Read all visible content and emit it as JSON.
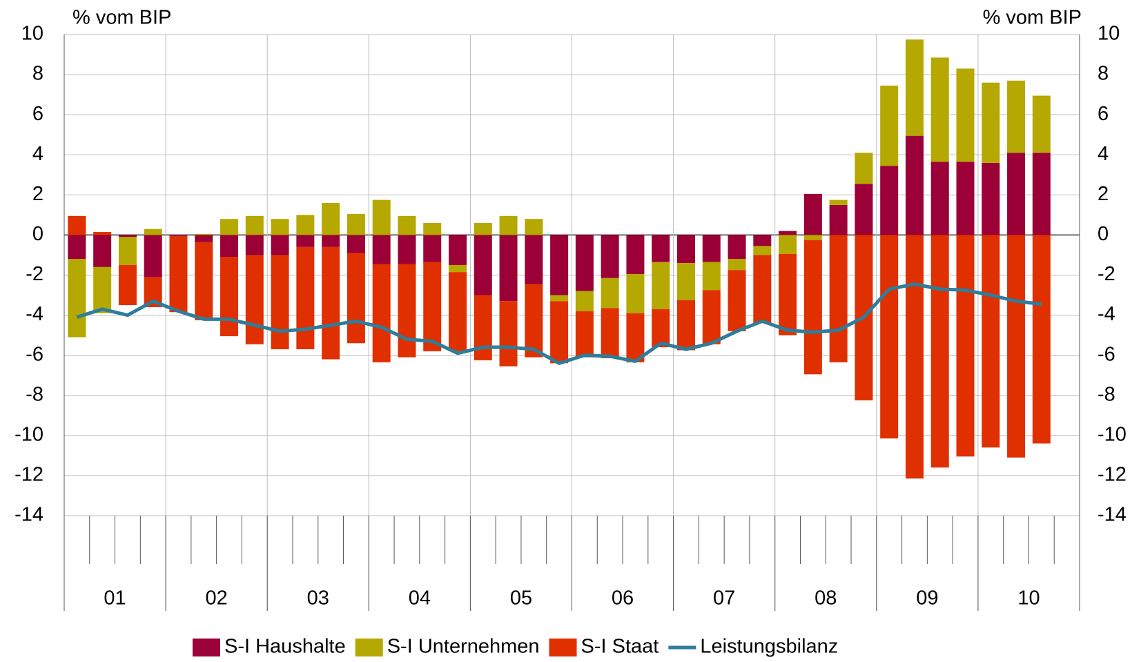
{
  "chart_data": {
    "type": "bar",
    "stacked": true,
    "y_label": "% vom BIP",
    "y2_label": "% vom BIP",
    "categories": [
      "01",
      null,
      null,
      null,
      "02",
      null,
      null,
      null,
      "03",
      null,
      null,
      null,
      "04",
      null,
      null,
      null,
      "05",
      null,
      null,
      null,
      "06",
      null,
      null,
      null,
      "07",
      null,
      null,
      null,
      "08",
      null,
      null,
      null,
      "09",
      null,
      null,
      null,
      "10",
      null,
      null,
      null
    ],
    "ylim": [
      -14,
      10
    ],
    "yticks": [
      -14,
      -12,
      -10,
      -8,
      -6,
      -4,
      -2,
      0,
      2,
      4,
      6,
      8,
      10
    ],
    "y2lim": [
      -14,
      10
    ],
    "y2ticks": [
      -14,
      -12,
      -10,
      -8,
      -6,
      -4,
      -2,
      0,
      2,
      4,
      6,
      8,
      10
    ],
    "grid": true,
    "legend": "bottom",
    "series": [
      {
        "name": "S-I Haushalte",
        "type": "bar",
        "color": "#9b0036",
        "values": [
          -1.2,
          -1.6,
          -0.1,
          -2.1,
          -0.05,
          -0.35,
          -1.1,
          -1.0,
          -1.0,
          -0.6,
          -0.6,
          -0.9,
          -1.45,
          -1.45,
          -1.35,
          -1.5,
          -3.0,
          -3.3,
          -2.45,
          -3.0,
          -2.8,
          -2.15,
          -1.95,
          -1.35,
          -1.4,
          -1.35,
          -1.2,
          -0.55,
          0.2,
          2.05,
          1.5,
          2.55,
          3.45,
          4.95,
          3.65,
          3.65,
          3.6,
          4.1,
          4.1,
          null
        ]
      },
      {
        "name": "S-I Unternehmen",
        "type": "bar",
        "color": "#b5a800",
        "values": [
          -3.9,
          -2.3,
          -1.4,
          0.3,
          0,
          0.05,
          0.8,
          0.95,
          0.8,
          1.0,
          1.6,
          1.05,
          1.75,
          0.95,
          0.6,
          -0.35,
          0.6,
          0.95,
          0.8,
          -0.3,
          -1.0,
          -1.5,
          -1.95,
          -2.35,
          -1.85,
          -1.4,
          -0.55,
          -0.45,
          -0.95,
          -0.25,
          0.25,
          1.55,
          4.0,
          4.8,
          5.2,
          4.65,
          4.0,
          3.6,
          2.85,
          null
        ]
      },
      {
        "name": "S-I Staat",
        "type": "bar",
        "color": "#e03000",
        "values": [
          0.95,
          0.15,
          -2.0,
          -1.5,
          -3.8,
          -3.9,
          -3.95,
          -4.45,
          -4.7,
          -5.1,
          -5.6,
          -4.5,
          -4.9,
          -4.65,
          -4.45,
          -3.95,
          -3.25,
          -3.25,
          -3.65,
          -3.1,
          -2.3,
          -2.5,
          -2.45,
          -1.9,
          -2.5,
          -2.7,
          -3.05,
          -3.4,
          -4.05,
          -6.7,
          -6.35,
          -8.25,
          -10.15,
          -12.15,
          -11.6,
          -11.05,
          -10.6,
          -11.1,
          -10.4,
          null
        ]
      },
      {
        "name": "Leistungsbilanz",
        "type": "line",
        "color": "#2e7d9a",
        "values": [
          -4.1,
          -3.7,
          -4.0,
          -3.3,
          -3.8,
          -4.2,
          -4.2,
          -4.5,
          -4.8,
          -4.7,
          -4.5,
          -4.3,
          -4.6,
          -5.2,
          -5.3,
          -5.9,
          -5.6,
          -5.6,
          -5.7,
          -6.4,
          -6.0,
          -6.05,
          -6.3,
          -5.4,
          -5.7,
          -5.4,
          -4.8,
          -4.3,
          -4.75,
          -4.85,
          -4.75,
          -4.1,
          -2.7,
          -2.45,
          -2.7,
          -2.75,
          -3.0,
          -3.3,
          -3.45,
          null
        ]
      }
    ]
  }
}
